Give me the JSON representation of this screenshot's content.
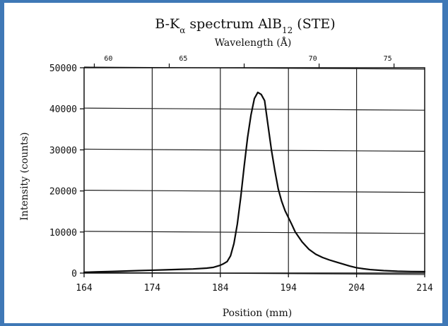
{
  "colors": {
    "frame": "#3f78b6",
    "axis": "#111111",
    "grid": "#222222",
    "line": "#0b0b0b",
    "text": "#111111",
    "background": "#ffffff"
  },
  "chart_data": {
    "type": "line",
    "title": {
      "prefix": "B-K",
      "prefix_sub": "α",
      "middle": " spectrum  AlB",
      "middle_sub": "12",
      "suffix": " (STE)"
    },
    "top_axis_label": "Wavelength (Å)",
    "xlabel": "Position (mm)",
    "ylabel": "Intensity (counts)",
    "xlim": [
      164,
      214
    ],
    "ylim": [
      0,
      50000
    ],
    "x_ticks": [
      164,
      174,
      184,
      194,
      204,
      214
    ],
    "x_tick_labels": [
      "164",
      "174",
      "184",
      "194",
      "204",
      "214"
    ],
    "y_ticks": [
      0,
      10000,
      20000,
      30000,
      40000,
      50000
    ],
    "y_tick_labels": [
      "0",
      "10000",
      "20000",
      "30000",
      "40000",
      "50000"
    ],
    "top_tick_positions_mm": [
      165.5,
      176.5,
      187.5,
      198.5,
      209.5
    ],
    "top_tick_labels": [
      "60",
      "65",
      "70",
      "75"
    ],
    "top_tick_label_positions_mm": [
      165.7,
      176.7,
      195.7,
      206.7
    ],
    "grid": true,
    "series": [
      {
        "x": [
          164,
          166,
          168,
          170,
          172,
          174,
          176,
          178,
          180,
          182,
          183,
          184,
          184.5,
          185,
          185.5,
          186,
          186.5,
          187,
          187.5,
          188,
          188.5,
          189,
          189.5,
          190,
          190.5,
          191,
          191.5,
          192,
          192.5,
          193,
          193.5,
          194,
          194.5,
          195,
          195.5,
          196,
          197,
          198,
          199,
          200,
          201,
          202,
          203,
          204,
          205,
          206,
          208,
          210,
          212,
          214
        ],
        "y": [
          200,
          300,
          400,
          500,
          600,
          700,
          800,
          900,
          1000,
          1200,
          1400,
          1900,
          2300,
          2800,
          4200,
          7200,
          12000,
          18500,
          26000,
          33000,
          38500,
          42500,
          44000,
          43500,
          42000,
          36000,
          30000,
          25000,
          20500,
          17500,
          15200,
          13500,
          11800,
          10000,
          8800,
          7600,
          5800,
          4600,
          3800,
          3200,
          2700,
          2200,
          1700,
          1300,
          1050,
          850,
          600,
          450,
          380,
          350
        ]
      }
    ]
  }
}
